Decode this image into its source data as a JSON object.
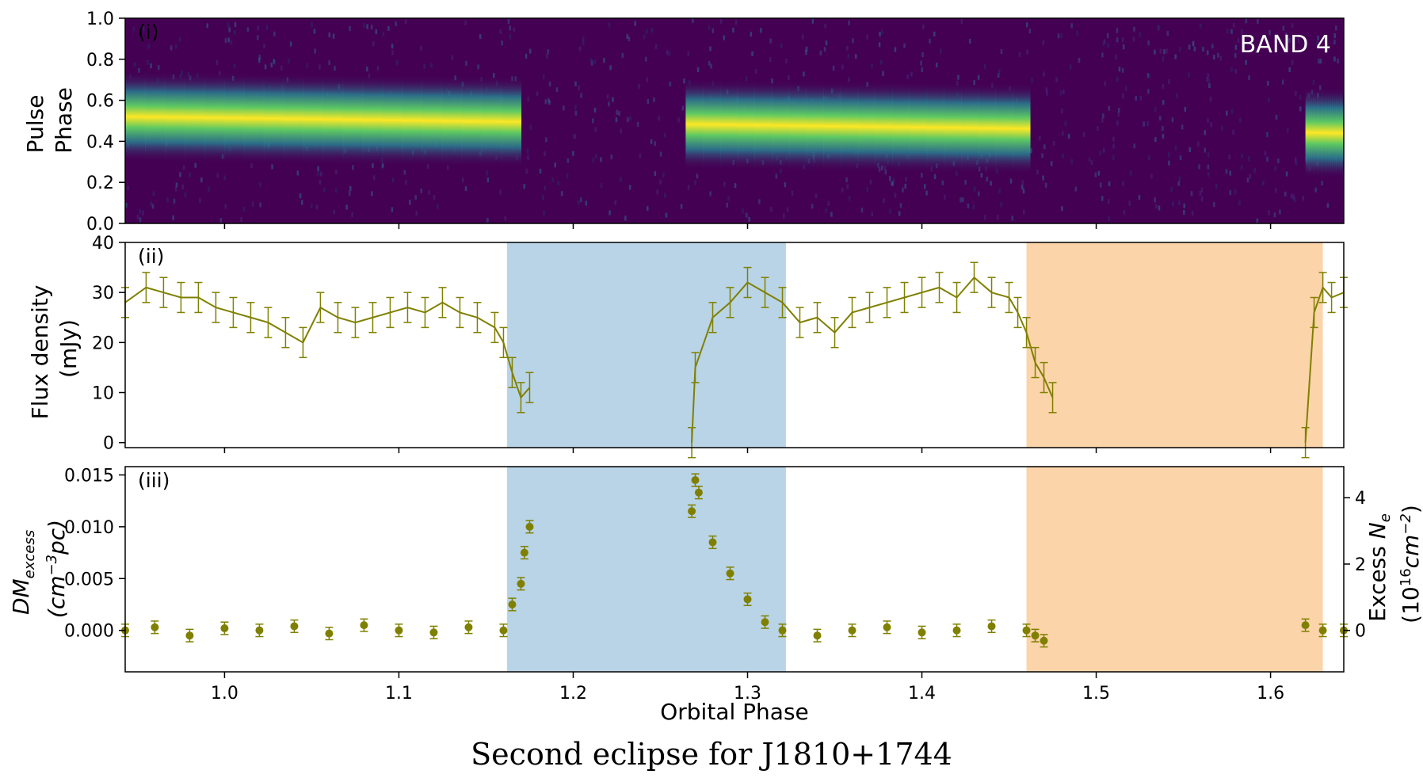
{
  "caption": "Second eclipse for J1810+1744",
  "colors": {
    "series": "#808000",
    "eclipse_1": "#b9d4e6",
    "eclipse_2": "#fbd4aa",
    "heatmap_low": "#440154",
    "heatmap_mid": "#21918c",
    "heatmap_high": "#fde725"
  },
  "chart_data": [
    {
      "type": "heatmap",
      "panel_label": "(i)",
      "annotation": "BAND 4",
      "ylabel_lines": [
        "Pulse",
        "Phase"
      ],
      "ylim": [
        0.0,
        1.0
      ],
      "yticks": [
        "0.0",
        "0.2",
        "0.4",
        "0.6",
        "0.8",
        "1.0"
      ],
      "xlim": [
        0.943,
        1.642
      ],
      "colormap": "viridis",
      "pulse_on_intervals": [
        [
          0.943,
          1.17
        ],
        [
          1.2645,
          1.462
        ],
        [
          1.62,
          1.642
        ]
      ],
      "pulse_center": [
        0.52,
        0.44
      ],
      "pulse_width": 0.1
    },
    {
      "type": "line",
      "panel_label": "(ii)",
      "ylabel_lines": [
        "Flux density",
        "(mJy)"
      ],
      "ylim": [
        -1,
        40
      ],
      "yticks": [
        "0",
        "10",
        "20",
        "30",
        "40"
      ],
      "xlim": [
        0.943,
        1.642
      ],
      "shaded_regions": [
        [
          1.162,
          1.322
        ],
        [
          1.46,
          1.63
        ]
      ],
      "series": [
        {
          "x": [
            0.943,
            0.955,
            0.965,
            0.975,
            0.985,
            0.995,
            1.005,
            1.015,
            1.025,
            1.035,
            1.045,
            1.055,
            1.065,
            1.075,
            1.085,
            1.095,
            1.105,
            1.115,
            1.125,
            1.135,
            1.145,
            1.155,
            1.16,
            1.165,
            1.17,
            1.175,
            1.268,
            1.27,
            1.28,
            1.29,
            1.3,
            1.31,
            1.32,
            1.33,
            1.34,
            1.35,
            1.36,
            1.37,
            1.38,
            1.39,
            1.4,
            1.41,
            1.42,
            1.43,
            1.44,
            1.45,
            1.455,
            1.46,
            1.465,
            1.47,
            1.475,
            1.62,
            1.625,
            1.63,
            1.635,
            1.642
          ],
          "y": [
            28,
            31,
            30,
            29,
            29,
            27,
            26,
            25,
            24,
            22,
            20,
            27,
            25,
            24,
            25,
            26,
            27,
            26,
            28,
            26,
            25,
            23,
            20,
            14,
            9,
            11,
            0,
            15,
            25,
            28,
            32,
            30,
            28,
            24,
            25,
            22,
            26,
            27,
            28,
            29,
            30,
            31,
            29,
            33,
            30,
            29,
            26,
            22,
            16,
            13,
            9,
            0,
            26,
            31,
            29,
            30
          ]
        }
      ]
    },
    {
      "type": "scatter",
      "panel_label": "(iii)",
      "ylabel_lines": [
        "DM_excess",
        "(cm^-3 pc)"
      ],
      "ylim": [
        -0.004,
        0.0158
      ],
      "yticks": [
        "0.000",
        "0.005",
        "0.010",
        "0.015"
      ],
      "right_ylabel_lines": [
        "Excess N_e",
        "(10^16 cm^-2)"
      ],
      "right_yticks": [
        "0",
        "2",
        "4"
      ],
      "xlim": [
        0.943,
        1.642
      ],
      "xticks": [
        "1.0",
        "1.1",
        "1.2",
        "1.3",
        "1.4",
        "1.5",
        "1.6"
      ],
      "xlabel": "Orbital Phase",
      "shaded_regions": [
        [
          1.162,
          1.322
        ],
        [
          1.46,
          1.63
        ]
      ],
      "series": [
        {
          "x": [
            0.943,
            0.96,
            0.98,
            1.0,
            1.02,
            1.04,
            1.06,
            1.08,
            1.1,
            1.12,
            1.14,
            1.16,
            1.165,
            1.17,
            1.172,
            1.175,
            1.268,
            1.27,
            1.272,
            1.28,
            1.29,
            1.3,
            1.31,
            1.32,
            1.34,
            1.36,
            1.38,
            1.4,
            1.42,
            1.44,
            1.46,
            1.465,
            1.47,
            1.62,
            1.63,
            1.642
          ],
          "y": [
            0.0,
            0.0003,
            -0.0005,
            0.0002,
            0.0,
            0.0004,
            -0.0003,
            0.0005,
            0.0,
            -0.0002,
            0.0003,
            0.0,
            0.0025,
            0.0045,
            0.0075,
            0.01,
            0.0115,
            0.0145,
            0.0133,
            0.0085,
            0.0055,
            0.003,
            0.0008,
            0.0,
            -0.0005,
            0.0,
            0.0003,
            -0.0002,
            0.0,
            0.0004,
            0.0,
            -0.0005,
            -0.001,
            0.0005,
            0.0,
            0.0
          ]
        }
      ]
    }
  ]
}
